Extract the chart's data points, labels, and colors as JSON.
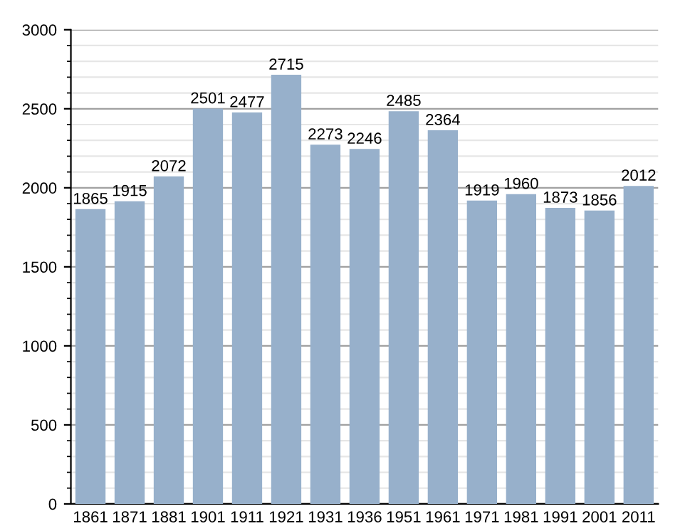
{
  "chart_data": {
    "type": "bar",
    "categories": [
      "1861",
      "1871",
      "1881",
      "1901",
      "1911",
      "1921",
      "1931",
      "1936",
      "1951",
      "1961",
      "1971",
      "1981",
      "1991",
      "2001",
      "2011"
    ],
    "values": [
      1865,
      1915,
      2072,
      2501,
      2477,
      2715,
      2273,
      2246,
      2485,
      2364,
      1919,
      1960,
      1873,
      1856,
      2012
    ],
    "color": "#97b0cb",
    "ylim": [
      0,
      3000
    ],
    "yticks": [
      0,
      500,
      1000,
      1500,
      2000,
      2500,
      3000
    ],
    "grid": "y",
    "data_labels": true
  }
}
